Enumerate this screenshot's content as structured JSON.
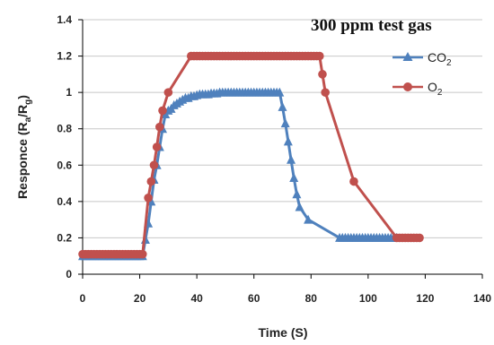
{
  "chart_data": {
    "type": "line",
    "title": "300 ppm test gas",
    "xlabel": "Time (S)",
    "ylabel_parts": {
      "pre": "Responce (R",
      "sub1": "a",
      "mid": "/R",
      "sub2": "g",
      "post": ")"
    },
    "xlim": [
      0,
      140
    ],
    "ylim": [
      0,
      1.4
    ],
    "xticks": [
      0,
      20,
      40,
      60,
      80,
      100,
      120,
      140
    ],
    "yticks": [
      "0",
      "0.2",
      "0.4",
      "0.6",
      "0.8",
      "1",
      "1.2",
      "1.4"
    ],
    "grid": "horizontal",
    "legend_position": "top-right",
    "series": [
      {
        "name": "CO2",
        "legend_base": "CO",
        "legend_sub": "2",
        "color": "#4f81bd",
        "marker": "triangle",
        "points": [
          [
            0,
            0.1
          ],
          [
            1,
            0.1
          ],
          [
            2,
            0.1
          ],
          [
            3,
            0.1
          ],
          [
            4,
            0.1
          ],
          [
            5,
            0.1
          ],
          [
            6,
            0.1
          ],
          [
            7,
            0.1
          ],
          [
            8,
            0.1
          ],
          [
            9,
            0.1
          ],
          [
            10,
            0.1
          ],
          [
            11,
            0.1
          ],
          [
            12,
            0.1
          ],
          [
            13,
            0.1
          ],
          [
            14,
            0.1
          ],
          [
            15,
            0.1
          ],
          [
            16,
            0.1
          ],
          [
            17,
            0.1
          ],
          [
            18,
            0.1
          ],
          [
            19,
            0.1
          ],
          [
            20,
            0.1
          ],
          [
            21,
            0.1
          ],
          [
            22,
            0.19
          ],
          [
            23,
            0.28
          ],
          [
            24,
            0.4
          ],
          [
            25,
            0.52
          ],
          [
            26,
            0.6
          ],
          [
            27,
            0.7
          ],
          [
            28,
            0.8
          ],
          [
            29,
            0.88
          ],
          [
            30,
            0.9
          ],
          [
            31,
            0.91
          ],
          [
            32,
            0.93
          ],
          [
            33,
            0.94
          ],
          [
            34,
            0.95
          ],
          [
            35,
            0.96
          ],
          [
            36,
            0.97
          ],
          [
            37,
            0.97
          ],
          [
            38,
            0.98
          ],
          [
            39,
            0.98
          ],
          [
            40,
            0.985
          ],
          [
            41,
            0.99
          ],
          [
            42,
            0.99
          ],
          [
            43,
            0.99
          ],
          [
            44,
            0.99
          ],
          [
            45,
            0.995
          ],
          [
            46,
            0.995
          ],
          [
            47,
            0.995
          ],
          [
            48,
            1.0
          ],
          [
            49,
            1.0
          ],
          [
            50,
            1.0
          ],
          [
            51,
            1.0
          ],
          [
            52,
            1.0
          ],
          [
            53,
            1.0
          ],
          [
            54,
            1.0
          ],
          [
            55,
            1.0
          ],
          [
            56,
            1.0
          ],
          [
            57,
            1.0
          ],
          [
            58,
            1.0
          ],
          [
            59,
            1.0
          ],
          [
            60,
            1.0
          ],
          [
            61,
            1.0
          ],
          [
            62,
            1.0
          ],
          [
            63,
            1.0
          ],
          [
            64,
            1.0
          ],
          [
            65,
            1.0
          ],
          [
            66,
            1.0
          ],
          [
            67,
            1.0
          ],
          [
            68,
            1.0
          ],
          [
            69,
            1.0
          ],
          [
            70,
            0.92
          ],
          [
            71,
            0.83
          ],
          [
            72,
            0.73
          ],
          [
            73,
            0.63
          ],
          [
            74,
            0.53
          ],
          [
            75,
            0.44
          ],
          [
            76,
            0.37
          ],
          [
            79,
            0.3
          ],
          [
            90,
            0.2
          ],
          [
            91,
            0.2
          ],
          [
            92,
            0.2
          ],
          [
            93,
            0.2
          ],
          [
            94,
            0.2
          ],
          [
            95,
            0.2
          ],
          [
            96,
            0.2
          ],
          [
            97,
            0.2
          ],
          [
            98,
            0.2
          ],
          [
            99,
            0.2
          ],
          [
            100,
            0.2
          ],
          [
            101,
            0.2
          ],
          [
            102,
            0.2
          ],
          [
            103,
            0.2
          ],
          [
            104,
            0.2
          ],
          [
            105,
            0.2
          ],
          [
            106,
            0.2
          ],
          [
            107,
            0.2
          ],
          [
            108,
            0.2
          ],
          [
            109,
            0.2
          ],
          [
            110,
            0.2
          ]
        ]
      },
      {
        "name": "O2",
        "legend_base": "O",
        "legend_sub": "2",
        "color": "#c0504d",
        "marker": "circle",
        "points": [
          [
            0,
            0.11
          ],
          [
            1,
            0.11
          ],
          [
            2,
            0.11
          ],
          [
            3,
            0.11
          ],
          [
            4,
            0.11
          ],
          [
            5,
            0.11
          ],
          [
            6,
            0.11
          ],
          [
            7,
            0.11
          ],
          [
            8,
            0.11
          ],
          [
            9,
            0.11
          ],
          [
            10,
            0.11
          ],
          [
            11,
            0.11
          ],
          [
            12,
            0.11
          ],
          [
            13,
            0.11
          ],
          [
            14,
            0.11
          ],
          [
            15,
            0.11
          ],
          [
            16,
            0.11
          ],
          [
            17,
            0.11
          ],
          [
            18,
            0.11
          ],
          [
            19,
            0.11
          ],
          [
            20,
            0.11
          ],
          [
            21,
            0.11
          ],
          [
            23,
            0.42
          ],
          [
            24,
            0.51
          ],
          [
            25,
            0.6
          ],
          [
            26,
            0.7
          ],
          [
            27,
            0.81
          ],
          [
            28,
            0.9
          ],
          [
            30,
            1.0
          ],
          [
            38,
            1.2
          ],
          [
            39,
            1.2
          ],
          [
            40,
            1.2
          ],
          [
            41,
            1.2
          ],
          [
            42,
            1.2
          ],
          [
            43,
            1.2
          ],
          [
            44,
            1.2
          ],
          [
            45,
            1.2
          ],
          [
            46,
            1.2
          ],
          [
            47,
            1.2
          ],
          [
            48,
            1.2
          ],
          [
            49,
            1.2
          ],
          [
            50,
            1.2
          ],
          [
            51,
            1.2
          ],
          [
            52,
            1.2
          ],
          [
            53,
            1.2
          ],
          [
            54,
            1.2
          ],
          [
            55,
            1.2
          ],
          [
            56,
            1.2
          ],
          [
            57,
            1.2
          ],
          [
            58,
            1.2
          ],
          [
            59,
            1.2
          ],
          [
            60,
            1.2
          ],
          [
            61,
            1.2
          ],
          [
            62,
            1.2
          ],
          [
            63,
            1.2
          ],
          [
            64,
            1.2
          ],
          [
            65,
            1.2
          ],
          [
            66,
            1.2
          ],
          [
            67,
            1.2
          ],
          [
            68,
            1.2
          ],
          [
            69,
            1.2
          ],
          [
            70,
            1.2
          ],
          [
            71,
            1.2
          ],
          [
            72,
            1.2
          ],
          [
            73,
            1.2
          ],
          [
            74,
            1.2
          ],
          [
            75,
            1.2
          ],
          [
            76,
            1.2
          ],
          [
            77,
            1.2
          ],
          [
            78,
            1.2
          ],
          [
            79,
            1.2
          ],
          [
            80,
            1.2
          ],
          [
            81,
            1.2
          ],
          [
            82,
            1.2
          ],
          [
            83,
            1.2
          ],
          [
            84,
            1.1
          ],
          [
            85,
            1.0
          ],
          [
            95,
            0.51
          ],
          [
            110,
            0.2
          ],
          [
            111,
            0.2
          ],
          [
            112,
            0.2
          ],
          [
            113,
            0.2
          ],
          [
            114,
            0.2
          ],
          [
            115,
            0.2
          ],
          [
            116,
            0.2
          ],
          [
            117,
            0.2
          ],
          [
            118,
            0.2
          ]
        ]
      }
    ]
  }
}
